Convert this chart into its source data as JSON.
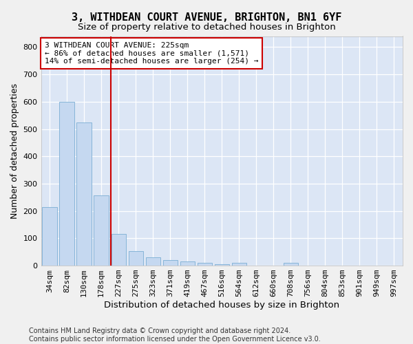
{
  "title1": "3, WITHDEAN COURT AVENUE, BRIGHTON, BN1 6YF",
  "title2": "Size of property relative to detached houses in Brighton",
  "xlabel": "Distribution of detached houses by size in Brighton",
  "ylabel": "Number of detached properties",
  "footer1": "Contains HM Land Registry data © Crown copyright and database right 2024.",
  "footer2": "Contains public sector information licensed under the Open Government Licence v3.0.",
  "categories": [
    "34sqm",
    "82sqm",
    "130sqm",
    "178sqm",
    "227sqm",
    "275sqm",
    "323sqm",
    "371sqm",
    "419sqm",
    "467sqm",
    "516sqm",
    "564sqm",
    "612sqm",
    "660sqm",
    "708sqm",
    "756sqm",
    "804sqm",
    "853sqm",
    "901sqm",
    "949sqm",
    "997sqm"
  ],
  "values": [
    215,
    600,
    525,
    257,
    115,
    52,
    31,
    20,
    16,
    11,
    5,
    10,
    0,
    0,
    10,
    0,
    0,
    0,
    0,
    0,
    0
  ],
  "bar_color": "#c5d8f0",
  "bar_edge_color": "#7aadd4",
  "vline_color": "#cc0000",
  "annotation_text": "3 WITHDEAN COURT AVENUE: 225sqm\n← 86% of detached houses are smaller (1,571)\n14% of semi-detached houses are larger (254) →",
  "annotation_box_color": "#ffffff",
  "annotation_box_edge": "#cc0000",
  "ylim": [
    0,
    840
  ],
  "yticks": [
    0,
    100,
    200,
    300,
    400,
    500,
    600,
    700,
    800
  ],
  "bg_color": "#dce6f5",
  "fig_bg_color": "#f0f0f0",
  "grid_color": "#ffffff",
  "title1_fontsize": 11,
  "title2_fontsize": 9.5,
  "xlabel_fontsize": 9.5,
  "ylabel_fontsize": 9,
  "tick_fontsize": 8,
  "annotation_fontsize": 8,
  "footer_fontsize": 7
}
